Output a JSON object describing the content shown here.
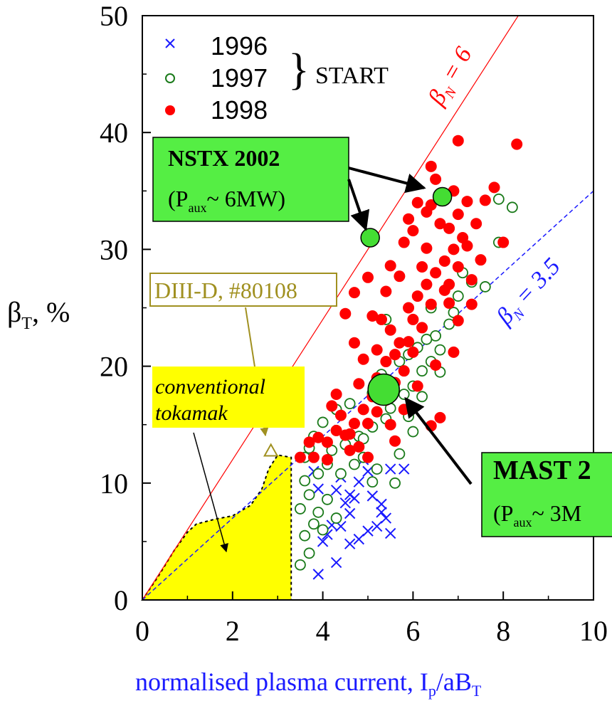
{
  "chart_data": {
    "type": "scatter",
    "xlabel": "normalised plasma current, I",
    "xlabel_sub1": "p",
    "xlabel_mid": "/aB",
    "xlabel_sub2": "T",
    "ylabel": "β",
    "ylabel_sub": "T",
    "ylabel_unit": ", %",
    "xlim": [
      0,
      10
    ],
    "ylim": [
      0,
      50
    ],
    "x_ticks": [
      "0",
      "2",
      "4",
      "6",
      "8",
      "10"
    ],
    "y_ticks": [
      "0",
      "10",
      "20",
      "30",
      "40",
      "50"
    ],
    "grid": false,
    "legend_position": "top-left",
    "legend_group_label": "START",
    "colors": {
      "y1996": "#1a1aff",
      "y1997": "#1a7a1a",
      "y1998": "#ff0000",
      "green_box": "#55ee44",
      "yellow": "#ffff00",
      "diiid": "#a09020"
    },
    "series": [
      {
        "name": "1996",
        "marker": "x",
        "color": "#1a1aff",
        "points": [
          [
            3.9,
            2.2
          ],
          [
            4.3,
            3.2
          ],
          [
            4.0,
            5.0
          ],
          [
            4.1,
            5.6
          ],
          [
            4.2,
            6.4
          ],
          [
            4.4,
            6.3
          ],
          [
            4.6,
            7.4
          ],
          [
            4.5,
            8.3
          ],
          [
            4.6,
            9.0
          ],
          [
            4.3,
            9.4
          ],
          [
            4.7,
            8.7
          ],
          [
            4.8,
            10.1
          ],
          [
            5.1,
            8.9
          ],
          [
            5.3,
            8.2
          ],
          [
            5.3,
            7.5
          ],
          [
            5.4,
            7.0
          ],
          [
            5.2,
            6.3
          ],
          [
            5.0,
            5.9
          ],
          [
            4.8,
            5.2
          ],
          [
            4.6,
            4.8
          ],
          [
            5.5,
            5.7
          ],
          [
            5.8,
            11.2
          ],
          [
            5.5,
            11.2
          ],
          [
            4.9,
            12.0
          ],
          [
            5.0,
            11.0
          ],
          [
            3.8,
            11.0
          ],
          [
            3.9,
            9.5
          ],
          [
            4.4,
            10.5
          ]
        ]
      },
      {
        "name": "1997",
        "marker": "o",
        "color": "#1a7a1a",
        "points": [
          [
            3.5,
            3.0
          ],
          [
            3.7,
            4.0
          ],
          [
            3.6,
            5.5
          ],
          [
            3.8,
            6.5
          ],
          [
            3.5,
            7.8
          ],
          [
            3.7,
            9.0
          ],
          [
            3.6,
            10.2
          ],
          [
            3.9,
            10.8
          ],
          [
            4.1,
            11.6
          ],
          [
            4.2,
            12.8
          ],
          [
            4.5,
            13.3
          ],
          [
            4.8,
            14.0
          ],
          [
            4.9,
            13.8
          ],
          [
            5.1,
            14.8
          ],
          [
            5.4,
            15.5
          ],
          [
            5.5,
            16.4
          ],
          [
            5.8,
            17.6
          ],
          [
            6.0,
            18.3
          ],
          [
            6.2,
            19.6
          ],
          [
            6.4,
            20.4
          ],
          [
            6.6,
            21.4
          ],
          [
            6.5,
            22.6
          ],
          [
            6.8,
            23.6
          ],
          [
            6.9,
            24.6
          ],
          [
            7.0,
            26.0
          ],
          [
            7.3,
            27.2
          ],
          [
            7.1,
            28.0
          ],
          [
            7.6,
            26.8
          ],
          [
            7.9,
            30.6
          ],
          [
            8.2,
            33.6
          ],
          [
            7.9,
            34.3
          ],
          [
            3.8,
            14.0
          ],
          [
            4.0,
            15.2
          ],
          [
            4.3,
            16.3
          ],
          [
            4.6,
            16.8
          ],
          [
            5.1,
            17.7
          ],
          [
            5.3,
            19.3
          ],
          [
            5.7,
            20.4
          ],
          [
            5.9,
            21.0
          ],
          [
            6.1,
            21.6
          ],
          [
            6.3,
            22.3
          ],
          [
            4.9,
            12.2
          ],
          [
            5.2,
            11.2
          ],
          [
            5.7,
            12.5
          ],
          [
            6.0,
            14.4
          ],
          [
            5.6,
            10.0
          ],
          [
            3.9,
            7.5
          ],
          [
            4.1,
            8.6
          ],
          [
            4.4,
            10.8
          ],
          [
            3.6,
            12.2
          ],
          [
            6.4,
            25.0
          ],
          [
            5.4,
            24.0
          ],
          [
            4.3,
            7.0
          ],
          [
            4.0,
            6.0
          ],
          [
            3.7,
            13.0
          ],
          [
            5.1,
            10.1
          ],
          [
            4.7,
            11.6
          ],
          [
            5.9,
            15.7
          ],
          [
            6.2,
            17.4
          ],
          [
            6.6,
            19.5
          ]
        ]
      },
      {
        "name": "1998",
        "marker": "filled-circle",
        "color": "#ff0000",
        "points": [
          [
            3.5,
            12.2
          ],
          [
            3.7,
            13.5
          ],
          [
            3.8,
            12.2
          ],
          [
            4.1,
            13.5
          ],
          [
            4.3,
            14.5
          ],
          [
            4.5,
            14.1
          ],
          [
            4.7,
            15.1
          ],
          [
            4.9,
            16.3
          ],
          [
            5.1,
            17.4
          ],
          [
            5.3,
            18.6
          ],
          [
            4.2,
            16.6
          ],
          [
            4.4,
            15.8
          ],
          [
            4.6,
            14.2
          ],
          [
            4.8,
            13.1
          ],
          [
            5.0,
            15.1
          ],
          [
            5.2,
            16.1
          ],
          [
            5.4,
            17.1
          ],
          [
            5.6,
            18.6
          ],
          [
            5.8,
            19.6
          ],
          [
            6.0,
            21.2
          ],
          [
            5.7,
            22.0
          ],
          [
            5.5,
            23.1
          ],
          [
            5.3,
            24.0
          ],
          [
            5.9,
            25.0
          ],
          [
            6.1,
            26.0
          ],
          [
            6.3,
            27.0
          ],
          [
            6.5,
            28.0
          ],
          [
            6.7,
            29.0
          ],
          [
            6.9,
            30.0
          ],
          [
            7.1,
            31.0
          ],
          [
            6.6,
            32.2
          ],
          [
            6.3,
            33.2
          ],
          [
            6.1,
            34.0
          ],
          [
            6.9,
            35.0
          ],
          [
            7.2,
            34.1
          ],
          [
            7.4,
            32.2
          ],
          [
            7.2,
            30.3
          ],
          [
            7.0,
            28.5
          ],
          [
            6.7,
            26.5
          ],
          [
            6.4,
            25.3
          ],
          [
            6.2,
            23.3
          ],
          [
            5.9,
            22.1
          ],
          [
            5.6,
            21.0
          ],
          [
            5.4,
            20.4
          ],
          [
            5.2,
            19.0
          ],
          [
            4.9,
            20.6
          ],
          [
            4.7,
            22.0
          ],
          [
            4.5,
            24.5
          ],
          [
            4.7,
            26.3
          ],
          [
            5.0,
            27.6
          ],
          [
            5.5,
            28.6
          ],
          [
            5.8,
            30.6
          ],
          [
            6.0,
            31.6
          ],
          [
            6.4,
            33.8
          ],
          [
            6.5,
            36.0
          ],
          [
            6.4,
            37.1
          ],
          [
            7.0,
            39.3
          ],
          [
            7.8,
            35.3
          ],
          [
            8.3,
            39.0
          ],
          [
            8.0,
            30.6
          ],
          [
            7.5,
            29.1
          ],
          [
            7.3,
            27.4
          ],
          [
            6.8,
            25.4
          ],
          [
            7.0,
            23.9
          ],
          [
            6.9,
            21.2
          ],
          [
            6.5,
            20.1
          ],
          [
            6.1,
            18.3
          ],
          [
            6.6,
            15.6
          ],
          [
            6.4,
            14.9
          ],
          [
            5.6,
            13.6
          ],
          [
            5.8,
            16.3
          ],
          [
            5.0,
            12.2
          ],
          [
            4.6,
            12.8
          ],
          [
            3.9,
            13.9
          ],
          [
            4.1,
            12.0
          ],
          [
            5.1,
            24.3
          ],
          [
            5.4,
            26.4
          ],
          [
            5.7,
            27.7
          ],
          [
            6.2,
            28.5
          ],
          [
            6.8,
            27.0
          ],
          [
            7.0,
            33.0
          ],
          [
            7.6,
            34.2
          ],
          [
            6.0,
            24.0
          ],
          [
            5.2,
            21.4
          ],
          [
            4.8,
            18.5
          ],
          [
            5.5,
            15.0
          ],
          [
            4.3,
            17.6
          ],
          [
            6.3,
            30.1
          ],
          [
            5.9,
            32.6
          ],
          [
            6.8,
            31.8
          ],
          [
            7.3,
            25.3
          ]
        ]
      }
    ],
    "reference_lines": [
      {
        "label": "β",
        "label_sub": "N",
        "label_value": " = 6",
        "slope": 6,
        "color": "#ff0000",
        "style": "solid"
      },
      {
        "label": "β",
        "label_sub": "N",
        "label_value": " = 3.5",
        "slope": 3.5,
        "color": "#1a1aff",
        "style": "dashed"
      }
    ],
    "highlight_points": [
      {
        "name": "NSTX 2002",
        "x": 5.05,
        "y": 31.0
      },
      {
        "name": "NSTX 2002",
        "x": 6.65,
        "y": 34.5
      },
      {
        "name": "MAST 2",
        "x": 5.35,
        "y": 18.0
      }
    ],
    "annotations": {
      "nstx_title": "NSTX 2002",
      "nstx_sub_a": "(P",
      "nstx_sub_b": "aux",
      "nstx_sub_c": "~ 6MW)",
      "mast_title": "MAST 2",
      "mast_sub_a": "(P",
      "mast_sub_b": "aux",
      "mast_sub_c": "~ 3M",
      "diiid": "DIII-D, #80108",
      "conventional_1": "conventional",
      "conventional_2": "tokamak"
    },
    "diiid_point": {
      "x": 2.85,
      "y": 12.7
    },
    "conventional_region_boundary": [
      [
        0,
        0
      ],
      [
        0.35,
        2.0
      ],
      [
        0.7,
        4.2
      ],
      [
        1.0,
        5.8
      ],
      [
        1.2,
        6.5
      ],
      [
        1.6,
        6.9
      ],
      [
        2.0,
        7.2
      ],
      [
        2.4,
        8.1
      ],
      [
        2.65,
        9.5
      ],
      [
        2.8,
        11.2
      ],
      [
        3.0,
        12.4
      ],
      [
        3.3,
        12.2
      ],
      [
        3.3,
        0
      ]
    ]
  }
}
